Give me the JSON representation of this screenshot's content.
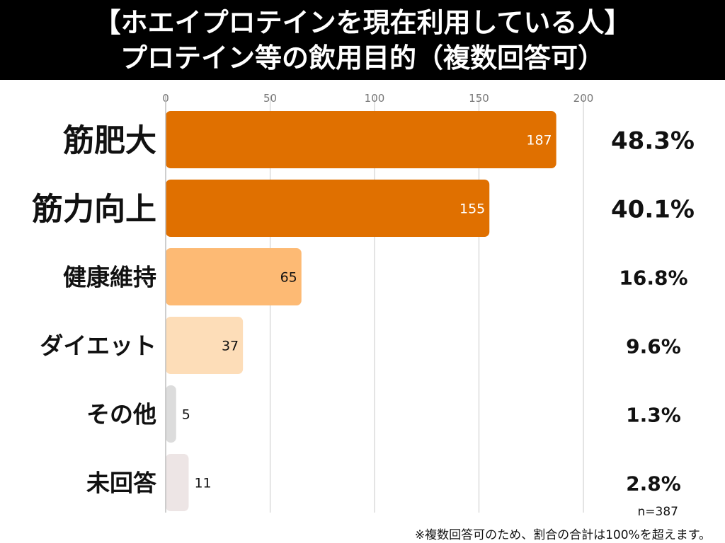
{
  "header": {
    "title_line1": "【ホエイプロテインを現在利用している人】",
    "title_line2": "プロテイン等の飲用目的（複数回答可）"
  },
  "chart_data": {
    "type": "bar",
    "orientation": "horizontal",
    "title": "【ホエイプロテインを現在利用している人】 プロテイン等の飲用目的（複数回答可）",
    "categories": [
      "筋肥大",
      "筋力向上",
      "健康維持",
      "ダイエット",
      "その他",
      "未回答"
    ],
    "values": [
      187,
      155,
      65,
      37,
      5,
      11
    ],
    "percentages": [
      "48.3%",
      "40.1%",
      "16.8%",
      "9.6%",
      "1.3%",
      "2.8%"
    ],
    "x_ticks": [
      "0",
      "50",
      "100",
      "150",
      "200"
    ],
    "xlim": [
      0,
      200
    ],
    "grid": true,
    "bar_colors": [
      "#E07000",
      "#E07000",
      "#FDBA74",
      "#FDDDB8",
      "#DCDCDC",
      "#EDE5E5"
    ],
    "value_label_colors": [
      "#ffffff",
      "#ffffff",
      "#111111",
      "#111111",
      "#111111",
      "#111111"
    ],
    "emphasized": [
      true,
      true,
      false,
      false,
      false,
      false
    ]
  },
  "footer": {
    "n_label": "n=387",
    "note": "※複数回答可のため、割合の合計は100%を超えます。"
  }
}
